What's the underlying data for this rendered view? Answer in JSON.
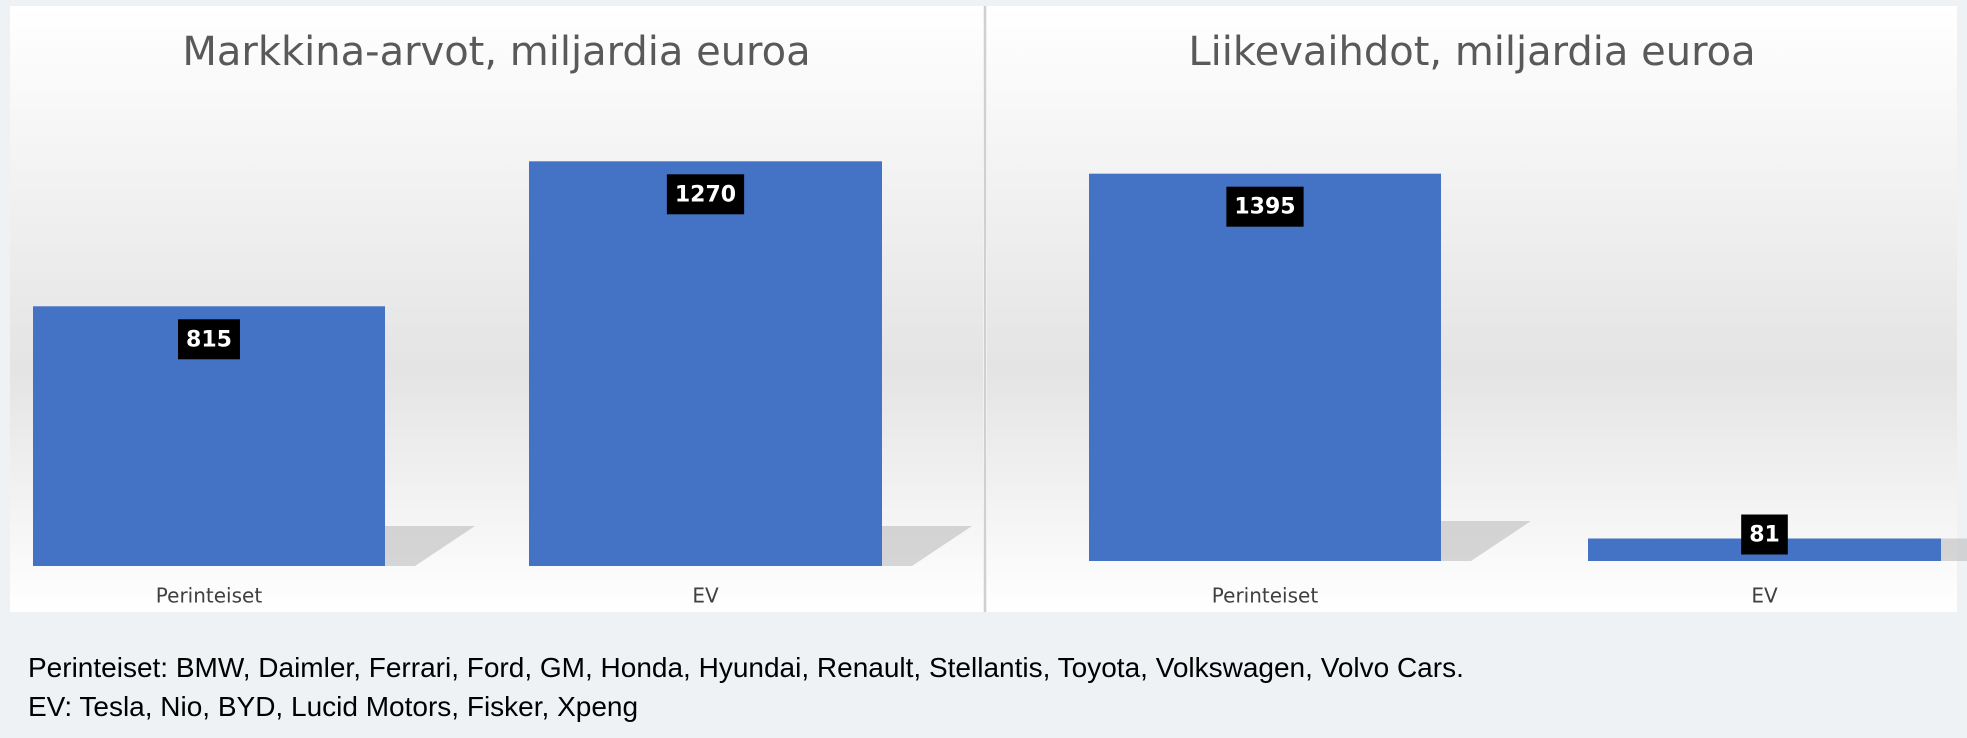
{
  "chart_data": [
    {
      "type": "bar",
      "title": "Markkina-arvot, miljardia euroa",
      "categories": [
        "Perinteiset",
        "EV"
      ],
      "values": [
        815,
        1270
      ],
      "color": "#4472c4",
      "ylim": [
        0,
        1500
      ]
    },
    {
      "type": "bar",
      "title": "Liikevaihdot, miljardia euroa",
      "categories": [
        "Perinteiset",
        "EV"
      ],
      "values": [
        1395,
        81
      ],
      "color": "#4472c4",
      "ylim": [
        0,
        1700
      ]
    }
  ],
  "notes": [
    "Perinteiset: BMW, Daimler, Ferrari, Ford, GM, Honda, Hyundai, Renault, Stellantis, Toyota, Volkswagen, Volvo Cars.",
    "EV: Tesla, Nio, BYD, Lucid Motors, Fisker, Xpeng"
  ]
}
